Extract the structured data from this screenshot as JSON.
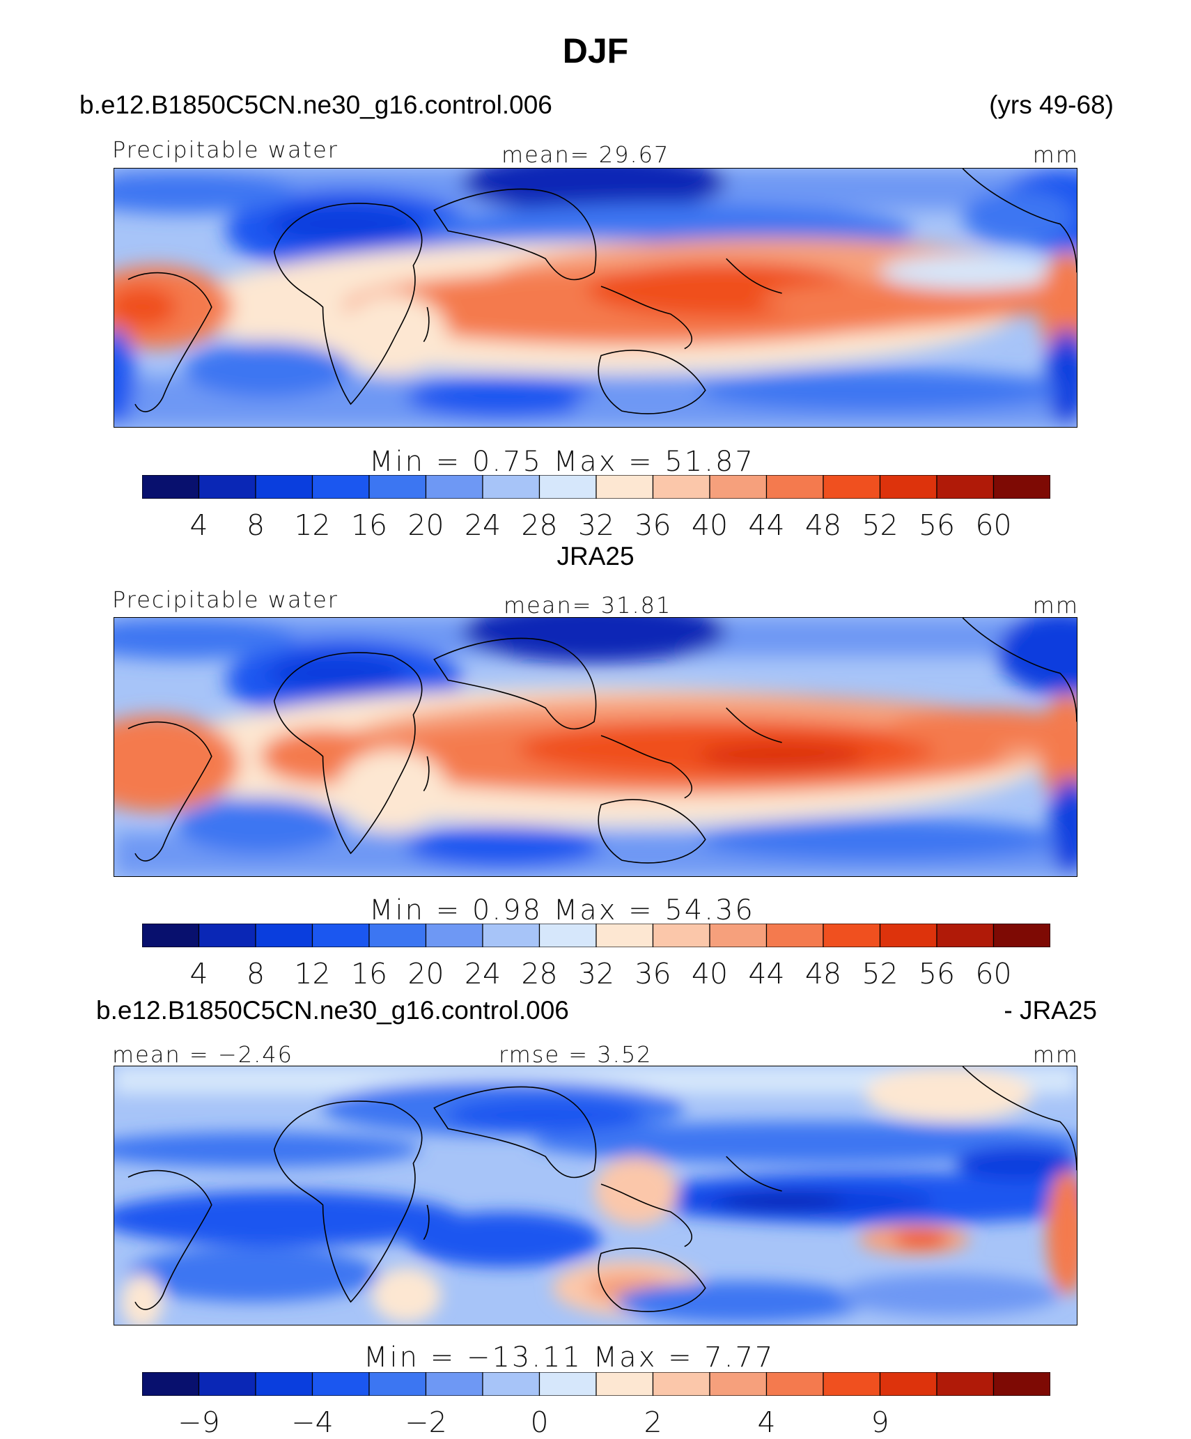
{
  "title": "DJF",
  "colors": [
    "#08106e",
    "#0a27b6",
    "#0a3ede",
    "#1b57f0",
    "#3c76f2",
    "#6e98f4",
    "#a7c4f8",
    "#d6e7fb",
    "#fde7d2",
    "#fbc7aa",
    "#f6a07c",
    "#f47a4e",
    "#f0501f",
    "#dd330c",
    "#b01a08",
    "#7e0a04"
  ],
  "panels": [
    {
      "id": "model",
      "header_left": "b.e12.B1850C5CN.ne30_g16.control.006",
      "header_right": "(yrs 49-68)",
      "variable": "Precipitable water",
      "stat_left": "",
      "stat_center": "mean=   29.67",
      "units": "mm",
      "minmax": "Min  =      0.75  Max  =    51.87",
      "colorbar_ticks": [
        "4",
        "8",
        "12",
        "16",
        "20",
        "24",
        "28",
        "32",
        "36",
        "40",
        "44",
        "48",
        "52",
        "56",
        "60"
      ],
      "stats": {
        "mean": 29.67,
        "min": 0.75,
        "max": 51.87
      }
    },
    {
      "id": "obs",
      "header_center": "JRA25",
      "variable": "Precipitable water",
      "stat_left": "",
      "stat_center": "mean=   31.81",
      "units": "mm",
      "minmax": "Min  =      0.98  Max  =    54.36",
      "colorbar_ticks": [
        "4",
        "8",
        "12",
        "16",
        "20",
        "24",
        "28",
        "32",
        "36",
        "40",
        "44",
        "48",
        "52",
        "56",
        "60"
      ],
      "stats": {
        "mean": 31.81,
        "min": 0.98,
        "max": 54.36
      }
    },
    {
      "id": "diff",
      "header_left": "b.e12.B1850C5CN.ne30_g16.control.006",
      "header_right": "- JRA25",
      "variable": "",
      "stat_left": "mean  =   −2.46",
      "stat_center": "rmse  =      3.52",
      "units": "mm",
      "minmax": "Min  =  −13.11  Max  =      7.77",
      "colorbar_ticks": [
        "−9",
        "",
        "−4",
        "",
        "−2",
        "",
        "0",
        "",
        "2",
        "",
        "4",
        "",
        "9",
        "",
        ""
      ],
      "stats": {
        "mean": -2.46,
        "rmse": 3.52,
        "min": -13.11,
        "max": 7.77
      }
    }
  ]
}
